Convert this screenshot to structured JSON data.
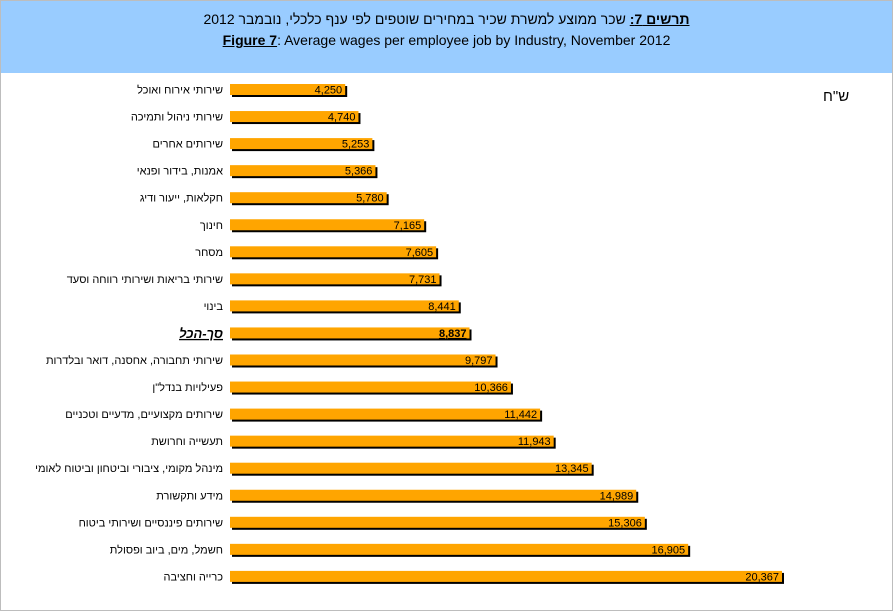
{
  "title": {
    "he_prefix": "תרשים 7:",
    "he_text": " שכר ממוצע למשרת שכיר במחירים שוטפים לפי ענף כלכלי, נובמבר 2012",
    "en_prefix": "Figure 7",
    "en_text": ": Average wages per employee job by Industry, November 2012"
  },
  "unit_label": "ש\"ח",
  "colors": {
    "header_bg": "#99ccff",
    "bar": "#ffa500",
    "bar_shadow": "#000000"
  },
  "chart_data": {
    "type": "bar",
    "orientation": "horizontal",
    "categories": [
      "שירותי אירוח ואוכל",
      "שירותי ניהול ותמיכה",
      "שירותים אחרים",
      "אמנות, בידור ופנאי",
      "חקלאות, ייעור ודיג",
      "חינוך",
      "מסחר",
      "שירותי בריאות ושירותי רווחה וסעד",
      "בינוי",
      "סך-הכל",
      "שירותי תחבורה, אחסנה, דואר ובלדרות",
      "פעילויות בנדל\"ן",
      "שירותים מקצועיים, מדעיים וטכניים",
      "תעשייה וחרושת",
      "מינהל מקומי, ציבורי וביטחון וביטוח לאומי",
      "מידע ותקשורת",
      "שירותים פיננסיים ושירותי ביטוח",
      "חשמל, מים, ביוב ופסולת",
      "כרייה וחציבה"
    ],
    "values": [
      4250,
      4740,
      5253,
      5366,
      5780,
      7165,
      7605,
      7731,
      8441,
      8837,
      9797,
      10366,
      11442,
      11943,
      13345,
      14989,
      15306,
      16905,
      20367
    ],
    "value_labels": [
      "4,250",
      "4,740",
      "5,253",
      "5,366",
      "5,780",
      "7,165",
      "7,605",
      "7,731",
      "8,441",
      "8,837",
      "9,797",
      "10,366",
      "11,442",
      "11,943",
      "13,345",
      "14,989",
      "15,306",
      "16,905",
      "20,367"
    ],
    "highlight_index": 9,
    "xlim": [
      0,
      20367
    ],
    "grid": false,
    "legend": "none"
  }
}
